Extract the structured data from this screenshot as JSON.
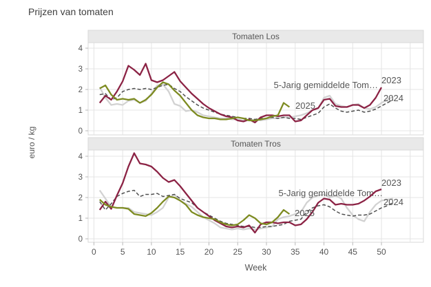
{
  "title": "Prijzen van tomaten",
  "chart_data": {
    "type": "line",
    "title": "Prijzen van tomaten",
    "xlabel": "Week",
    "ylabel": "euro / kg",
    "x_ticks": [
      0,
      5,
      10,
      15,
      20,
      25,
      30,
      35,
      40,
      45,
      50
    ],
    "y_ticks": [
      0,
      1,
      2,
      3,
      4
    ],
    "xlim": [
      -1,
      57
    ],
    "ylim": [
      -0.2,
      4.3
    ],
    "grid": true,
    "legend_position": "inline-labels-at-line-ends",
    "colors": {
      "y2023": "#8B2244",
      "y2024": "#D2D2D2",
      "y2025": "#7D8B21",
      "average": "#4F4F4F",
      "strip_bg": "#E9E9E9",
      "gridline": "#E4E4E4",
      "axis_text": "#555555"
    },
    "facets": [
      {
        "label": "Tomaten Los",
        "series": [
          {
            "name": "2024",
            "color": "#D2D2D2",
            "style": "solid",
            "x_start": 1,
            "values": [
              2.1,
              1.6,
              1.25,
              1.3,
              1.25,
              1.45,
              1.5,
              1.35,
              1.45,
              1.8,
              2.2,
              2.25,
              1.9,
              1.3,
              1.2,
              0.95,
              1.0,
              0.9,
              0.75,
              0.7,
              0.65,
              0.6,
              0.6,
              0.55,
              0.55,
              0.5,
              0.5,
              0.55,
              0.5,
              0.55,
              0.6,
              0.6,
              0.65,
              0.65,
              0.7,
              0.75,
              0.85,
              1.0,
              1.1,
              1.6,
              1.7,
              1.3,
              1.2,
              1.15,
              1.25,
              1.3,
              1.1,
              1.05,
              1.15,
              1.35,
              1.5,
              1.65
            ]
          },
          {
            "name": "5-Jarig gemiddelde Tom…",
            "color": "#4F4F4F",
            "style": "dashed",
            "x_start": 1,
            "values": [
              1.75,
              1.8,
              1.5,
              1.6,
              1.9,
              2.0,
              2.05,
              2.0,
              2.05,
              2.0,
              2.1,
              2.2,
              2.25,
              2.05,
              1.9,
              1.65,
              1.45,
              1.25,
              1.1,
              1.0,
              0.9,
              0.8,
              0.75,
              0.7,
              0.65,
              0.6,
              0.6,
              0.55,
              0.6,
              0.6,
              0.65,
              0.6,
              0.65,
              0.6,
              0.6,
              0.55,
              0.65,
              0.75,
              0.85,
              1.15,
              1.3,
              1.1,
              0.95,
              0.9,
              0.95,
              1.0,
              0.9,
              0.95,
              1.05,
              1.2,
              1.35,
              1.5
            ]
          },
          {
            "name": "2023",
            "color": "#8B2244",
            "style": "solid",
            "x_start": 1,
            "values": [
              1.35,
              1.7,
              1.5,
              1.9,
              2.4,
              3.15,
              2.95,
              2.7,
              3.25,
              2.45,
              2.35,
              2.45,
              2.65,
              2.85,
              2.4,
              2.1,
              1.8,
              1.55,
              1.3,
              1.1,
              0.95,
              0.8,
              0.7,
              0.65,
              0.5,
              0.45,
              0.55,
              0.4,
              0.65,
              0.75,
              0.75,
              0.7,
              0.75,
              0.75,
              0.45,
              0.5,
              0.75,
              1.0,
              1.1,
              1.5,
              1.55,
              1.2,
              1.15,
              1.15,
              1.25,
              1.25,
              1.1,
              1.25,
              1.6,
              2.1
            ]
          },
          {
            "name": "2025",
            "color": "#7D8B21",
            "style": "solid",
            "x_start": 1,
            "values": [
              2.05,
              2.2,
              1.75,
              1.5,
              1.55,
              1.5,
              1.55,
              1.35,
              1.5,
              1.75,
              2.1,
              2.35,
              2.25,
              1.95,
              1.7,
              1.35,
              1.0,
              0.75,
              0.65,
              0.6,
              0.6,
              0.55,
              0.55,
              0.6,
              0.65,
              0.6,
              0.5,
              0.5,
              0.55,
              0.6,
              0.7,
              0.75,
              1.35,
              1.15
            ]
          }
        ]
      },
      {
        "label": "Tomaten Tros",
        "series": [
          {
            "name": "2024",
            "color": "#D2D2D2",
            "style": "solid",
            "x_start": 1,
            "values": [
              2.35,
              1.95,
              1.55,
              1.5,
              1.5,
              1.5,
              1.3,
              1.25,
              1.2,
              1.15,
              1.3,
              1.5,
              2.0,
              2.15,
              1.85,
              1.7,
              1.55,
              1.3,
              1.05,
              0.9,
              0.75,
              0.55,
              0.5,
              0.45,
              0.5,
              0.45,
              0.5,
              0.45,
              0.5,
              0.55,
              0.6,
              0.95,
              1.05,
              1.1,
              1.2,
              1.3,
              1.75,
              2.0,
              2.1,
              2.15,
              2.0,
              2.1,
              1.95,
              1.5,
              1.15,
              0.95,
              0.85,
              1.3,
              1.65,
              1.85,
              1.9,
              1.95
            ]
          },
          {
            "name": "5-Jarig gemiddelde Tom…",
            "color": "#4F4F4F",
            "style": "dashed",
            "x_start": 1,
            "values": [
              1.8,
              1.4,
              1.7,
              2.05,
              2.2,
              2.3,
              2.35,
              2.05,
              2.15,
              2.15,
              2.2,
              2.05,
              2.1,
              2.15,
              1.95,
              1.85,
              1.75,
              1.5,
              1.3,
              1.15,
              1.0,
              0.85,
              0.75,
              0.7,
              0.65,
              0.6,
              0.6,
              0.55,
              0.55,
              0.6,
              0.6,
              0.65,
              0.7,
              0.85,
              0.9,
              0.95,
              1.3,
              1.5,
              1.6,
              1.65,
              1.55,
              1.35,
              1.2,
              1.15,
              1.1,
              1.15,
              1.15,
              1.2,
              1.35,
              1.5,
              1.6,
              1.75
            ]
          },
          {
            "name": "2023",
            "color": "#8B2244",
            "style": "solid",
            "x_start": 1,
            "values": [
              1.4,
              1.8,
              1.45,
              2.1,
              2.7,
              3.5,
              4.15,
              3.65,
              3.6,
              3.5,
              3.25,
              2.95,
              2.75,
              2.85,
              2.55,
              2.2,
              1.85,
              1.5,
              1.3,
              1.1,
              0.9,
              0.75,
              0.6,
              0.55,
              0.6,
              0.55,
              0.65,
              0.3,
              0.7,
              0.8,
              0.8,
              0.75,
              0.8,
              0.8,
              0.65,
              0.7,
              0.95,
              1.3,
              1.75,
              1.95,
              1.9,
              1.65,
              1.7,
              1.65,
              1.65,
              1.7,
              1.85,
              2.05,
              2.3,
              2.4
            ]
          },
          {
            "name": "2025",
            "color": "#7D8B21",
            "style": "solid",
            "x_start": 1,
            "values": [
              1.9,
              1.65,
              1.55,
              1.5,
              1.5,
              1.45,
              1.2,
              1.15,
              1.1,
              1.25,
              1.5,
              1.8,
              2.05,
              2.0,
              1.85,
              1.65,
              1.3,
              1.15,
              1.05,
              1.0,
              0.95,
              0.8,
              0.7,
              0.65,
              0.7,
              0.9,
              1.15,
              1.0,
              0.75,
              0.7,
              0.8,
              1.05,
              1.4,
              1.2
            ]
          }
        ]
      }
    ]
  }
}
